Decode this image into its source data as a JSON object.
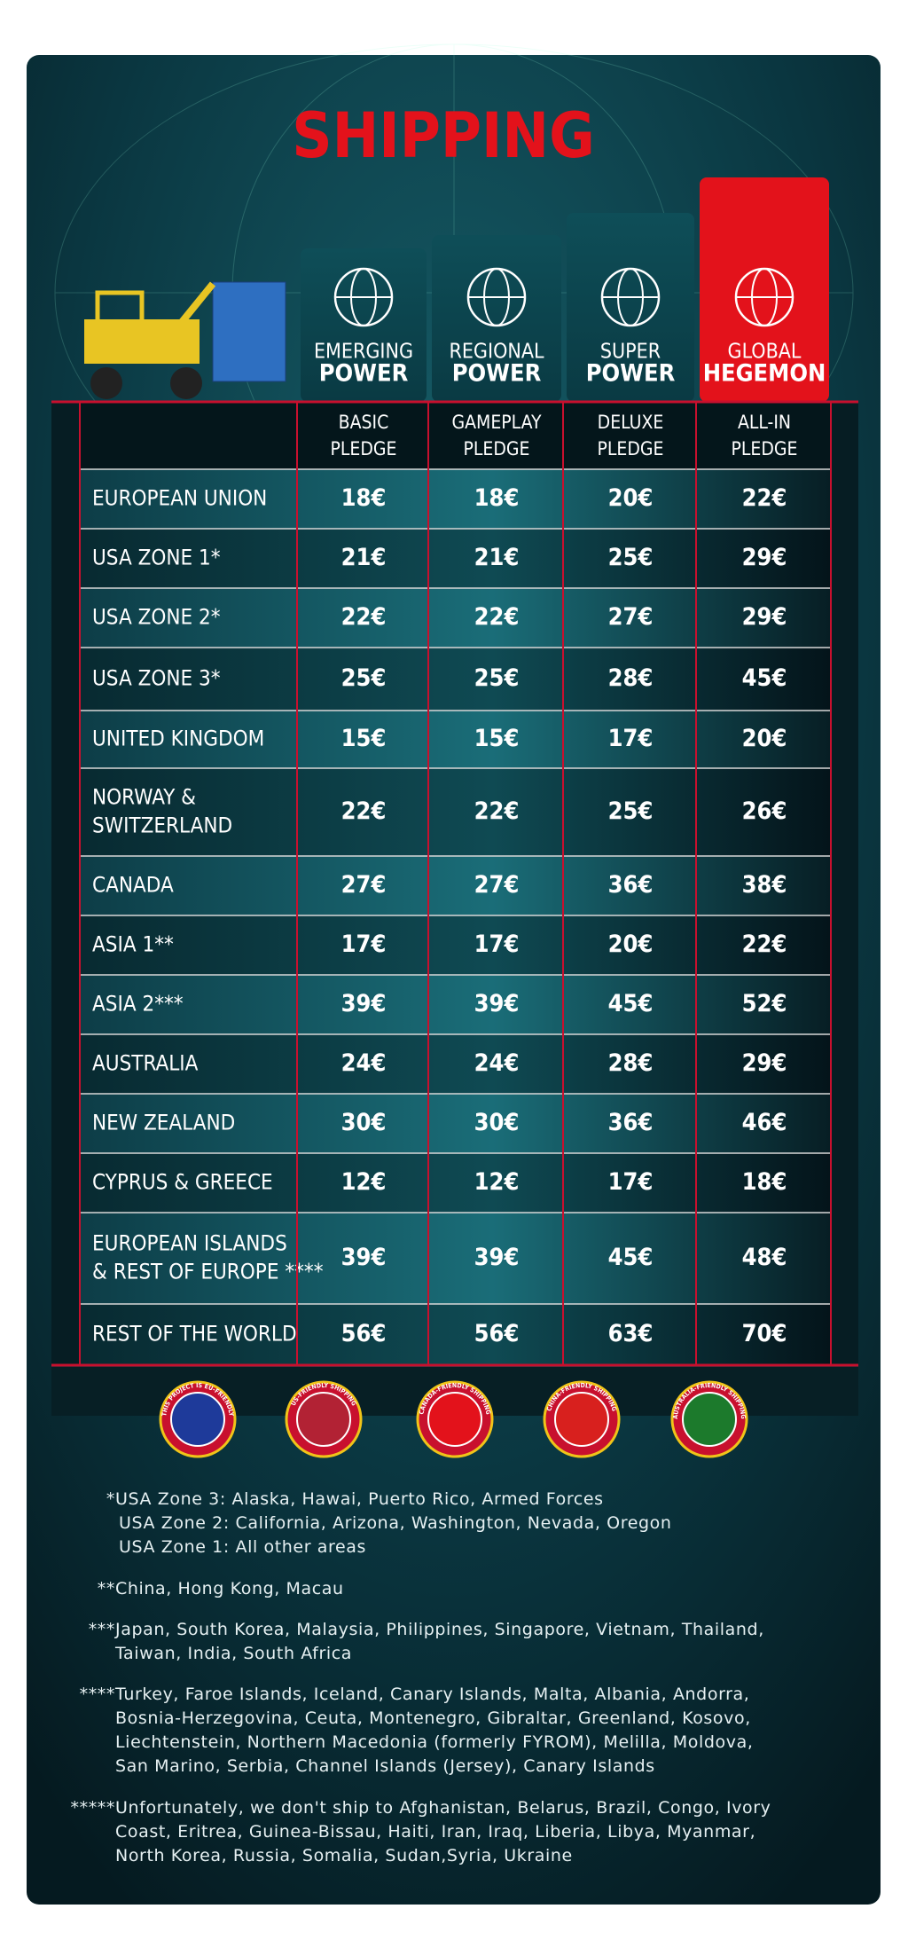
{
  "title": "SHIPPING",
  "tiers": [
    {
      "top": "EMERGING",
      "bottom": "POWER",
      "pledge": [
        "BASIC",
        "PLEDGE"
      ]
    },
    {
      "top": "REGIONAL",
      "bottom": "POWER",
      "pledge": [
        "GAMEPLAY",
        "PLEDGE"
      ]
    },
    {
      "top": "SUPER",
      "bottom": "POWER",
      "pledge": [
        "DELUXE",
        "PLEDGE"
      ]
    },
    {
      "top": "GLOBAL",
      "bottom": "HEGEMON",
      "pledge": [
        "ALL-IN",
        "PLEDGE"
      ]
    }
  ],
  "rows": [
    {
      "region": [
        "EUROPEAN UNION"
      ],
      "prices": [
        "18€",
        "18€",
        "20€",
        "22€"
      ]
    },
    {
      "region": [
        "USA ZONE 1*"
      ],
      "prices": [
        "21€",
        "21€",
        "25€",
        "29€"
      ]
    },
    {
      "region": [
        "USA ZONE 2*"
      ],
      "prices": [
        "22€",
        "22€",
        "27€",
        "29€"
      ]
    },
    {
      "region": [
        "USA ZONE 3*"
      ],
      "prices": [
        "25€",
        "25€",
        "28€",
        "45€"
      ]
    },
    {
      "region": [
        "UNITED KINGDOM"
      ],
      "prices": [
        "15€",
        "15€",
        "17€",
        "20€"
      ]
    },
    {
      "region": [
        "NORWAY &",
        "SWITZERLAND"
      ],
      "prices": [
        "22€",
        "22€",
        "25€",
        "26€"
      ]
    },
    {
      "region": [
        "CANADA"
      ],
      "prices": [
        "27€",
        "27€",
        "36€",
        "38€"
      ]
    },
    {
      "region": [
        "ASIA 1**"
      ],
      "prices": [
        "17€",
        "17€",
        "20€",
        "22€"
      ]
    },
    {
      "region": [
        "ASIA 2***"
      ],
      "prices": [
        "39€",
        "39€",
        "45€",
        "52€"
      ]
    },
    {
      "region": [
        "AUSTRALIA"
      ],
      "prices": [
        "24€",
        "24€",
        "28€",
        "29€"
      ]
    },
    {
      "region": [
        "NEW ZEALAND"
      ],
      "prices": [
        "30€",
        "30€",
        "36€",
        "46€"
      ]
    },
    {
      "region": [
        "CYPRUS & GREECE"
      ],
      "prices": [
        "12€",
        "12€",
        "17€",
        "18€"
      ]
    },
    {
      "region": [
        "EUROPEAN ISLANDS",
        "& REST OF EUROPE ****"
      ],
      "prices": [
        "39€",
        "39€",
        "45€",
        "48€"
      ]
    },
    {
      "region": [
        "REST OF THE WORLD"
      ],
      "prices": [
        "56€",
        "56€",
        "63€",
        "70€"
      ]
    }
  ],
  "badges": [
    "THIS PROJECT IS EU-FRIENDLY",
    "US-FRIENDLY SHIPPING",
    "CANADA-FRIENDLY SHIPPING",
    "CHINA-FRIENDLY SHIPPING",
    "AUSTRALIA-FRIENDLY SHIPPING"
  ],
  "notes": [
    {
      "marker": "*",
      "lines": [
        "USA Zone 3: Alaska, Hawai, Puerto Rico, Armed Forces",
        "USA Zone 2: California, Arizona, Washington, Nevada, Oregon",
        "USA Zone 1: All other areas"
      ]
    },
    {
      "marker": "**",
      "lines": [
        "China, Hong Kong, Macau"
      ]
    },
    {
      "marker": "***",
      "lines": [
        "Japan, South Korea, Malaysia, Philippines, Singapore, Vietnam, Thailand,",
        "Taiwan, India, South Africa"
      ]
    },
    {
      "marker": "****",
      "lines": [
        "Turkey, Faroe Islands, Iceland, Canary Islands, Malta, Albania, Andorra,",
        "Bosnia-Herzegovina, Ceuta, Montenegro, Gibraltar, Greenland, Kosovo,",
        "Liechtenstein, Northern Macedonia (formerly FYROM), Melilla, Moldova,",
        "San Marino, Serbia, Channel Islands (Jersey), Canary Islands"
      ]
    },
    {
      "marker": "*****",
      "lines": [
        "Unfortunately, we don't ship to Afghanistan, Belarus, Brazil, Congo, Ivory",
        "Coast, Eritrea, Guinea-Bissau, Haiti, Iran, Iraq, Liberia, Libya, Myanmar,",
        "North Korea, Russia, Somalia, Sudan,Syria, Ukraine"
      ]
    }
  ]
}
